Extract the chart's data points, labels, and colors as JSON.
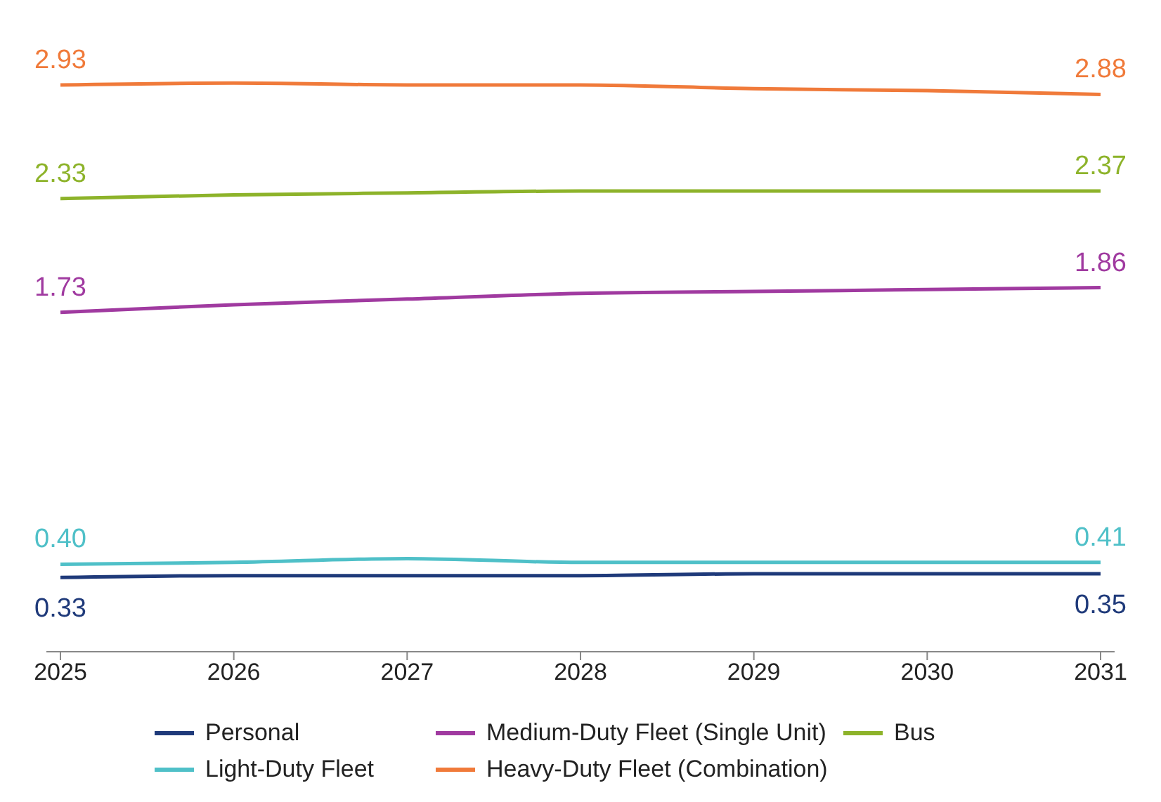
{
  "chart_data": {
    "type": "line",
    "categories": [
      "2025",
      "2026",
      "2027",
      "2028",
      "2029",
      "2030",
      "2031"
    ],
    "series": [
      {
        "name": "Personal",
        "color": "#1f3a7a",
        "values": [
          0.33,
          0.34,
          0.34,
          0.34,
          0.35,
          0.35,
          0.35
        ],
        "value_labels": [
          "0.33",
          null,
          null,
          null,
          null,
          null,
          "0.35"
        ]
      },
      {
        "name": "Medium-Duty Fleet (Single Unit)",
        "color": "#a03aa0",
        "values": [
          1.73,
          1.77,
          1.8,
          1.83,
          1.84,
          1.85,
          1.86
        ],
        "value_labels": [
          "1.73",
          null,
          null,
          null,
          null,
          null,
          "1.86"
        ]
      },
      {
        "name": "Bus",
        "color": "#8db32a",
        "values": [
          2.33,
          2.35,
          2.36,
          2.37,
          2.37,
          2.37,
          2.37
        ],
        "value_labels": [
          "2.33",
          null,
          null,
          null,
          null,
          null,
          "2.37"
        ]
      },
      {
        "name": "Light-Duty Fleet",
        "color": "#4fc0c8",
        "values": [
          0.4,
          0.41,
          0.43,
          0.41,
          0.41,
          0.41,
          0.41
        ],
        "value_labels": [
          "0.40",
          null,
          null,
          null,
          null,
          null,
          "0.41"
        ]
      },
      {
        "name": "Heavy-Duty Fleet (Combination)",
        "color": "#f07a3a",
        "values": [
          2.93,
          2.94,
          2.93,
          2.93,
          2.91,
          2.9,
          2.88
        ],
        "value_labels": [
          "2.93",
          null,
          null,
          null,
          null,
          null,
          "2.88"
        ]
      }
    ],
    "legend": "bottom",
    "marker": "none",
    "line_style": "solid"
  }
}
